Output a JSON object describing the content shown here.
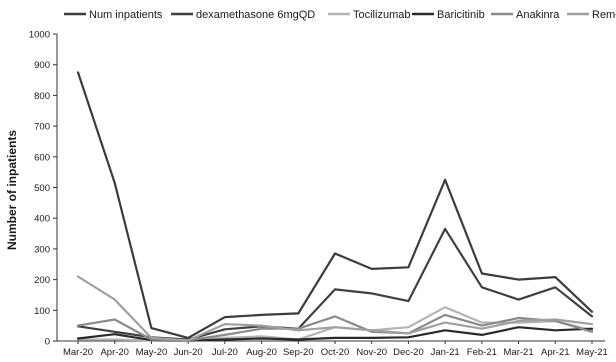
{
  "chart_data": {
    "type": "line",
    "title": "",
    "xlabel": "",
    "ylabel": "Number of inpatients",
    "ylim": [
      0,
      1000
    ],
    "yticks": [
      0,
      100,
      200,
      300,
      400,
      500,
      600,
      700,
      800,
      900,
      1000
    ],
    "grid": false,
    "legend_position": "top",
    "categories": [
      "Mar-20",
      "Apr-20",
      "May-20",
      "Jun-20",
      "Jul-20",
      "Aug-20",
      "Sep-20",
      "Oct-20",
      "Nov-20",
      "Dec-20",
      "Jan-21",
      "Feb-21",
      "Mar-21",
      "Apr-21",
      "May-21"
    ],
    "series": [
      {
        "name": "Num inpatients",
        "color": "#3c3c3c",
        "values": [
          875,
          515,
          42,
          10,
          78,
          85,
          90,
          285,
          235,
          240,
          525,
          220,
          200,
          208,
          95
        ]
      },
      {
        "name": "dexamethasone 6mgQD",
        "color": "#404040",
        "values": [
          48,
          30,
          12,
          5,
          38,
          48,
          40,
          168,
          155,
          130,
          365,
          175,
          135,
          175,
          80
        ]
      },
      {
        "name": "Tocilizumab",
        "color": "#b4b4b4",
        "values": [
          5,
          5,
          2,
          1,
          10,
          15,
          5,
          45,
          35,
          45,
          110,
          60,
          60,
          65,
          35
        ]
      },
      {
        "name": "Baricitinib",
        "color": "#2a2a2a",
        "values": [
          8,
          22,
          3,
          1,
          5,
          8,
          5,
          10,
          10,
          12,
          35,
          20,
          45,
          35,
          40
        ]
      },
      {
        "name": "Anakinra",
        "color": "#8a8a8a",
        "values": [
          50,
          70,
          5,
          2,
          20,
          40,
          40,
          80,
          30,
          25,
          85,
          50,
          75,
          65,
          30
        ]
      },
      {
        "name": "Remdesivir",
        "color": "#a0a0a0",
        "values": [
          210,
          135,
          10,
          2,
          55,
          50,
          35,
          45,
          35,
          25,
          60,
          40,
          65,
          70,
          55
        ]
      }
    ]
  }
}
